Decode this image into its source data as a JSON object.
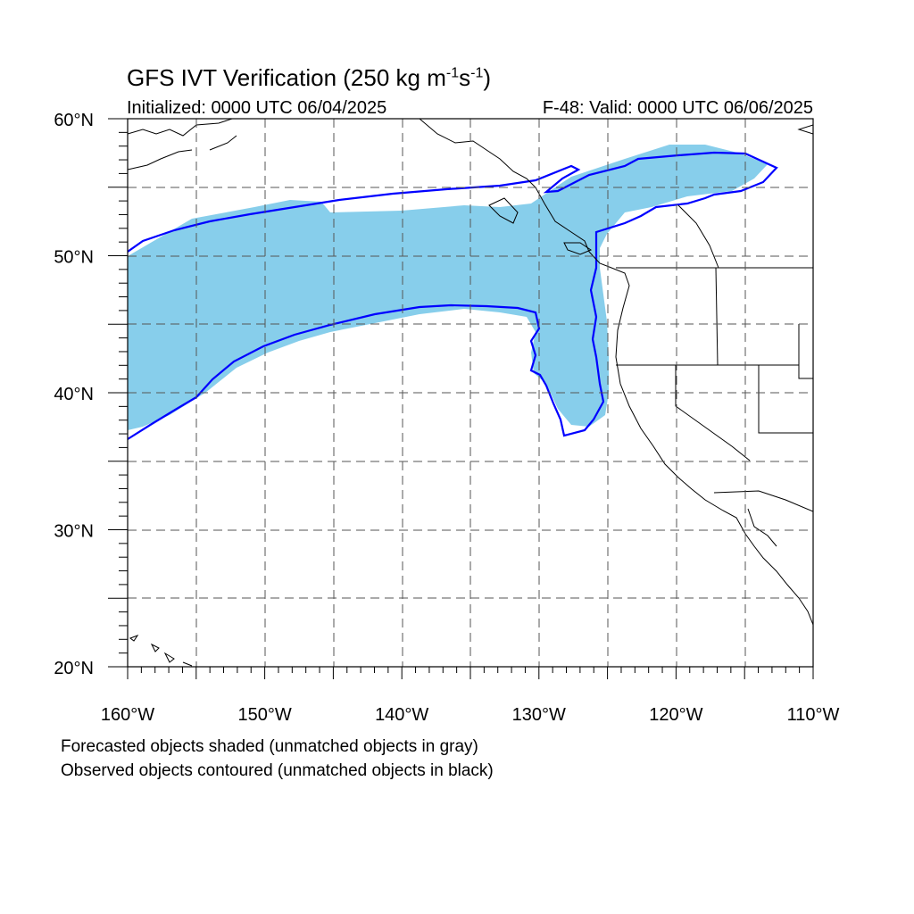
{
  "title": {
    "main": "GFS IVT Verification (250 kg m",
    "sup1": "-1",
    "mid": "s",
    "sup2": "-1",
    "end": ")"
  },
  "initialized": "Initialized: 0000 UTC 06/04/2025",
  "valid": "F-48: Valid: 0000 UTC 06/06/2025",
  "footer": {
    "line1": "Forecasted objects shaded (unmatched objects in gray)",
    "line2": "Observed objects contoured (unmatched objects in black)"
  },
  "map": {
    "lon_range": [
      -160,
      -110
    ],
    "lat_range": [
      20,
      60
    ],
    "lon_labels": [
      "160°W",
      "150°W",
      "140°W",
      "130°W",
      "120°W",
      "110°W"
    ],
    "lat_labels": [
      "60°N",
      "50°N",
      "40°N",
      "30°N",
      "20°N"
    ],
    "gridlines": "dashed, every 5°",
    "colors": {
      "forecast_fill": "#87ceeb",
      "observed_contour": "#0000ff",
      "coastline": "#000000"
    }
  }
}
